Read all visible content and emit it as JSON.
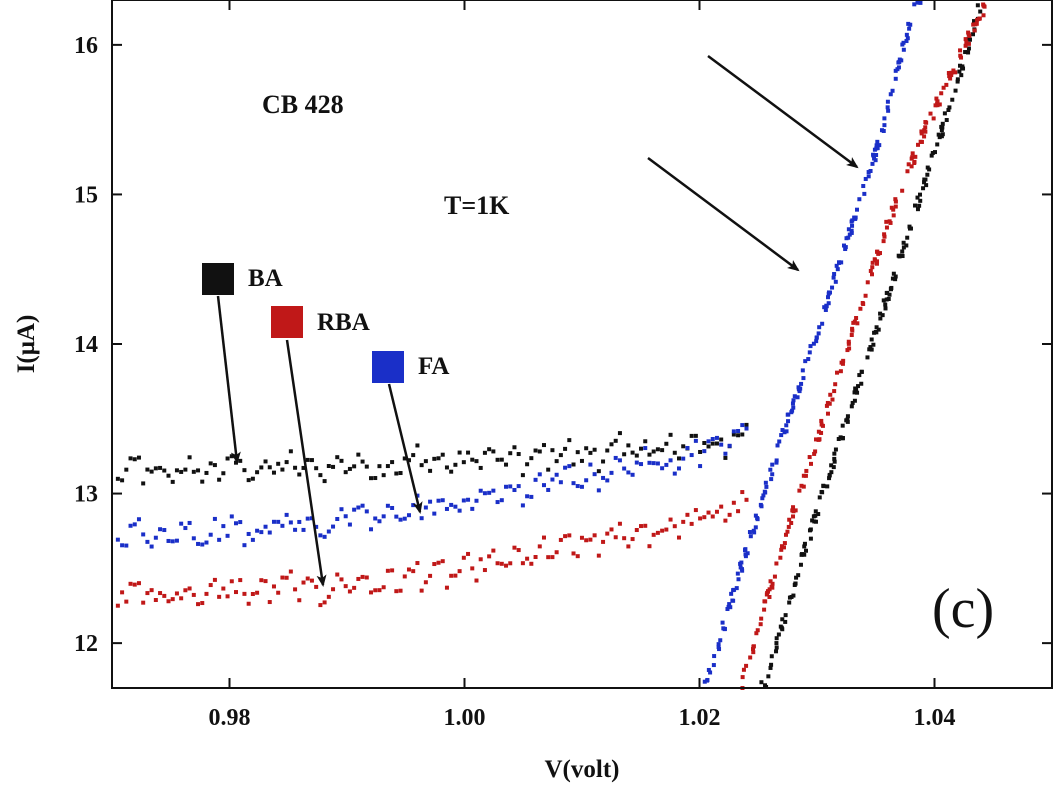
{
  "chart_data": {
    "type": "scatter",
    "title": "",
    "xlabel": "V(volt)",
    "ylabel": "I(μA)",
    "xlim": [
      0.97,
      1.05
    ],
    "ylim": [
      11.7,
      16.3
    ],
    "x_ticks": [
      {
        "value": 0.98,
        "label": "0.98"
      },
      {
        "value": 1.0,
        "label": "1.00"
      },
      {
        "value": 1.02,
        "label": "1.02"
      },
      {
        "value": 1.04,
        "label": "1.04"
      }
    ],
    "y_ticks": [
      {
        "value": 12,
        "label": "12"
      },
      {
        "value": 13,
        "label": "13"
      },
      {
        "value": 14,
        "label": "14"
      },
      {
        "value": 15,
        "label": "15"
      },
      {
        "value": 16,
        "label": "16"
      }
    ],
    "annotations": {
      "sample": "CB 428",
      "temperature": "T=1K",
      "panel": "(c)"
    },
    "series": [
      {
        "name": "BA",
        "color": "#111111",
        "plateau": [
          [
            0.9705,
            13.12
          ],
          [
            0.972,
            13.17
          ],
          [
            0.974,
            13.1
          ],
          [
            0.976,
            13.16
          ],
          [
            0.978,
            13.12
          ],
          [
            0.98,
            13.19
          ],
          [
            0.982,
            13.14
          ],
          [
            0.985,
            13.18
          ],
          [
            0.988,
            13.15
          ],
          [
            0.99,
            13.2
          ],
          [
            0.993,
            13.16
          ],
          [
            0.996,
            13.22
          ],
          [
            0.999,
            13.19
          ],
          [
            1.002,
            13.24
          ],
          [
            1.005,
            13.2
          ],
          [
            1.008,
            13.27
          ],
          [
            1.011,
            13.24
          ],
          [
            1.014,
            13.3
          ],
          [
            1.017,
            13.27
          ],
          [
            1.02,
            13.34
          ],
          [
            1.022,
            13.32
          ],
          [
            1.024,
            13.36
          ]
        ],
        "rise": [
          [
            1.0255,
            11.7
          ],
          [
            1.0285,
            12.5
          ],
          [
            1.0305,
            13.0
          ],
          [
            1.033,
            13.6
          ],
          [
            1.0355,
            14.2
          ],
          [
            1.038,
            14.8
          ],
          [
            1.0405,
            15.4
          ],
          [
            1.0425,
            15.9
          ],
          [
            1.044,
            16.3
          ]
        ]
      },
      {
        "name": "RBA",
        "color": "#c01818",
        "plateau": [
          [
            0.9705,
            12.3
          ],
          [
            0.972,
            12.36
          ],
          [
            0.974,
            12.28
          ],
          [
            0.976,
            12.34
          ],
          [
            0.978,
            12.3
          ],
          [
            0.98,
            12.36
          ],
          [
            0.982,
            12.32
          ],
          [
            0.985,
            12.38
          ],
          [
            0.988,
            12.33
          ],
          [
            0.99,
            12.4
          ],
          [
            0.993,
            12.38
          ],
          [
            0.996,
            12.45
          ],
          [
            0.999,
            12.45
          ],
          [
            1.002,
            12.52
          ],
          [
            1.005,
            12.55
          ],
          [
            1.008,
            12.62
          ],
          [
            1.011,
            12.66
          ],
          [
            1.014,
            12.72
          ],
          [
            1.017,
            12.75
          ],
          [
            1.02,
            12.82
          ],
          [
            1.022,
            12.87
          ],
          [
            1.024,
            12.93
          ]
        ],
        "rise": [
          [
            1.0235,
            11.7
          ],
          [
            1.0265,
            12.5
          ],
          [
            1.0285,
            13.0
          ],
          [
            1.031,
            13.6
          ],
          [
            1.0335,
            14.2
          ],
          [
            1.036,
            14.8
          ],
          [
            1.039,
            15.4
          ],
          [
            1.042,
            15.9
          ],
          [
            1.0445,
            16.3
          ]
        ]
      },
      {
        "name": "FA",
        "color": "#1a2fc8",
        "plateau": [
          [
            0.9705,
            12.68
          ],
          [
            0.972,
            12.74
          ],
          [
            0.974,
            12.67
          ],
          [
            0.976,
            12.74
          ],
          [
            0.978,
            12.7
          ],
          [
            0.98,
            12.78
          ],
          [
            0.982,
            12.74
          ],
          [
            0.985,
            12.8
          ],
          [
            0.988,
            12.76
          ],
          [
            0.99,
            12.84
          ],
          [
            0.993,
            12.82
          ],
          [
            0.996,
            12.9
          ],
          [
            0.999,
            12.9
          ],
          [
            1.002,
            12.98
          ],
          [
            1.005,
            13.0
          ],
          [
            1.008,
            13.08
          ],
          [
            1.011,
            13.1
          ],
          [
            1.014,
            13.18
          ],
          [
            1.017,
            13.2
          ],
          [
            1.02,
            13.28
          ],
          [
            1.022,
            13.33
          ],
          [
            1.024,
            13.4
          ]
        ],
        "rise": [
          [
            1.0205,
            11.7
          ],
          [
            1.0235,
            12.5
          ],
          [
            1.0255,
            13.0
          ],
          [
            1.028,
            13.6
          ],
          [
            1.0305,
            14.2
          ],
          [
            1.033,
            14.8
          ],
          [
            1.0355,
            15.4
          ],
          [
            1.037,
            15.9
          ],
          [
            1.0385,
            16.3
          ]
        ]
      }
    ],
    "legend": [
      {
        "label": "BA",
        "color": "#111111"
      },
      {
        "label": "RBA",
        "color": "#c01818"
      },
      {
        "label": "FA",
        "color": "#1a2fc8"
      }
    ],
    "grid": false,
    "legend_placement": "middle-left"
  }
}
